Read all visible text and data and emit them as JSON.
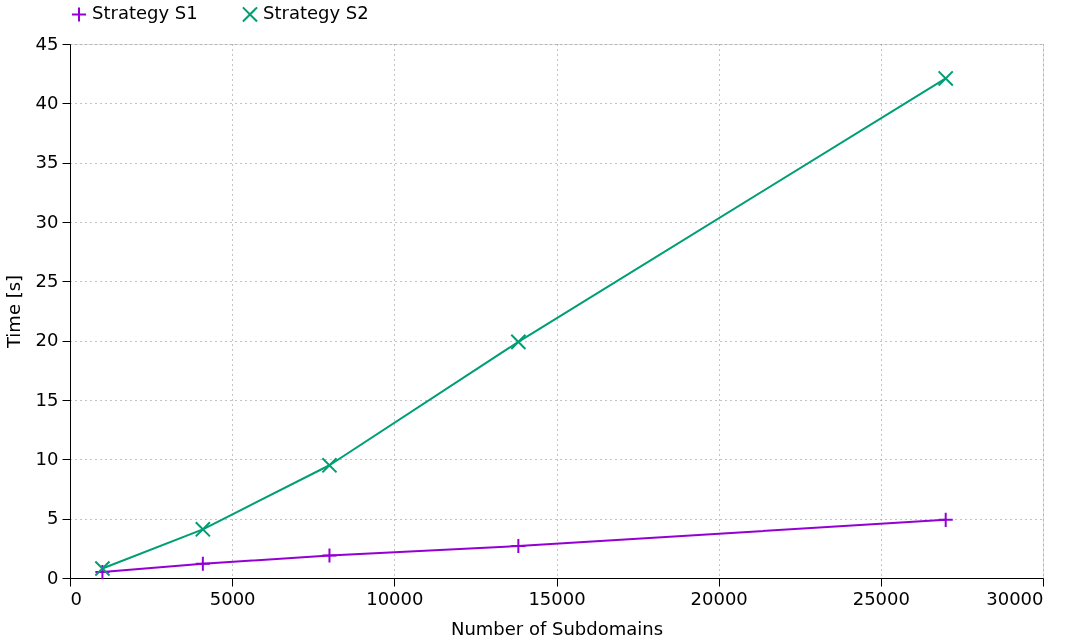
{
  "chart_data": {
    "type": "line",
    "xlabel": "Number of Subdomains",
    "ylabel": "Time [s]",
    "xlim": [
      0,
      30000
    ],
    "xticks": [
      0,
      5000,
      10000,
      15000,
      20000,
      25000,
      30000
    ],
    "ylim": [
      0,
      45
    ],
    "yticks": [
      0,
      5,
      10,
      15,
      20,
      25,
      30,
      35,
      40,
      45
    ],
    "grid": true,
    "legend": "top",
    "line_style": "solid",
    "series": [
      {
        "name": "Strategy S1",
        "color": "#9400d3",
        "marker": "cross",
        "x": [
          1000,
          4096,
          8000,
          13824,
          27000
        ],
        "values": [
          0.5,
          1.2,
          1.9,
          2.7,
          4.9
        ]
      },
      {
        "name": "Strategy S2",
        "color": "#009e73",
        "marker": "x",
        "x": [
          1000,
          4096,
          8000,
          13824,
          27000
        ],
        "values": [
          0.8,
          4.1,
          9.5,
          19.9,
          42.1
        ]
      }
    ]
  }
}
